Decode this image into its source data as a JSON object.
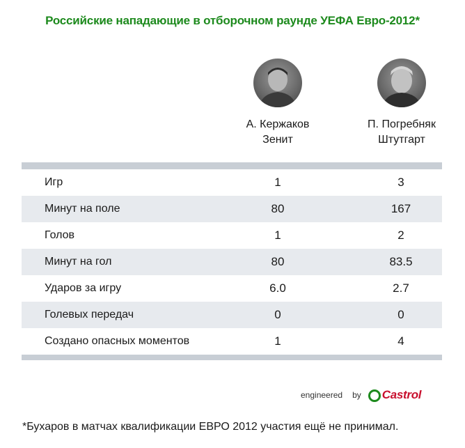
{
  "title": "Российские нападающие в отборочном раунде УЕФА Евро-2012*",
  "players": [
    {
      "name": "А. Кержаков",
      "club": "Зенит"
    },
    {
      "name": "П. Погребняк",
      "club": "Штутгарт"
    }
  ],
  "rows": [
    {
      "label": "Игр",
      "v1": "1",
      "v2": "3"
    },
    {
      "label": "Минут на поле",
      "v1": "80",
      "v2": "167"
    },
    {
      "label": "Голов",
      "v1": "1",
      "v2": "2"
    },
    {
      "label": "Минут на гол",
      "v1": "80",
      "v2": "83.5"
    },
    {
      "label": "Ударов за игру",
      "v1": "6.0",
      "v2": "2.7"
    },
    {
      "label": "Голевых передач",
      "v1": "0",
      "v2": "0"
    },
    {
      "label": "Создано опасных моментов",
      "v1": "1",
      "v2": "4"
    }
  ],
  "brand": {
    "engineered": "engineered",
    "by": "by",
    "logo": "Castrol"
  },
  "footnote": "*Бухаров в матчах квалификации ЕВРО 2012 участия ещё не принимал."
}
